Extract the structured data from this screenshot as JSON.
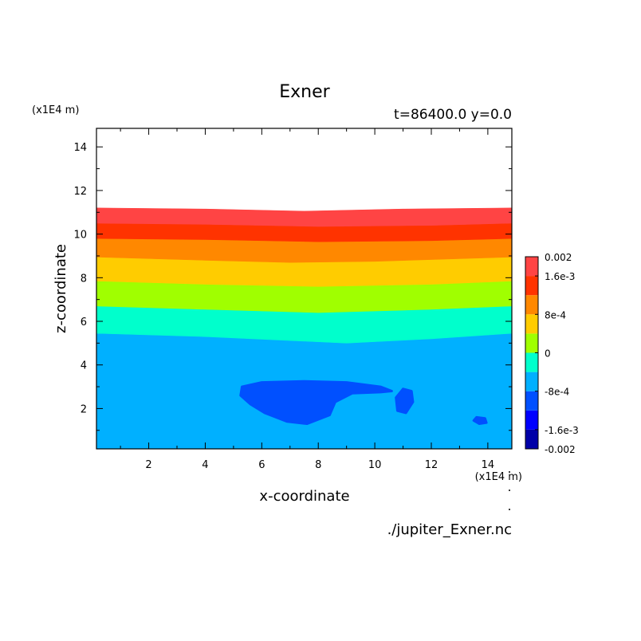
{
  "chart_data": {
    "type": "heatmap",
    "title": "Exner",
    "subtitle": "t=86400.0 y=0.0",
    "xlabel": "x-coordinate",
    "ylabel": "z-coordinate",
    "x_unit": "(x1E4 m)",
    "y_unit": "(x1E4 m)",
    "footer": "./jupiter_Exner.nc",
    "xlim": [
      0.15,
      14.85
    ],
    "ylim": [
      0.15,
      14.85
    ],
    "xticks": [
      2,
      4,
      6,
      8,
      10,
      12,
      14
    ],
    "yticks": [
      2,
      4,
      6,
      8,
      10,
      12,
      14
    ],
    "grid": false,
    "colorbar": {
      "placement": "right",
      "levels": [
        -0.002,
        -0.0016,
        -0.0012,
        -0.0008,
        -0.0004,
        0,
        0.0004,
        0.0008,
        0.0012,
        0.0016,
        0.002
      ],
      "colors": [
        "#0000a8",
        "#0000ff",
        "#0050ff",
        "#00b0ff",
        "#00ffcc",
        "#a0ff00",
        "#ffcc00",
        "#ff8800",
        "#ff3300",
        "#ff4444"
      ],
      "tick_values": [
        0.002,
        0.0016,
        0.0008,
        0,
        -0.0008,
        -0.0016,
        -0.002
      ],
      "tick_labels": [
        "0.002",
        "1.6e-3",
        "8e-4",
        "0",
        "-8e-4",
        "-1.6e-3",
        "-0.002"
      ]
    },
    "bands": [
      {
        "level": "-4e-4..0",
        "color": "#00ffcc",
        "top": [
          [
            0.15,
            6.7
          ],
          [
            4,
            6.55
          ],
          [
            8,
            6.4
          ],
          [
            12,
            6.55
          ],
          [
            14.85,
            6.7
          ]
        ],
        "bottom": [
          [
            0.15,
            5.45
          ],
          [
            4,
            5.3
          ],
          [
            9,
            5.0
          ],
          [
            12,
            5.2
          ],
          [
            14.85,
            5.45
          ]
        ]
      },
      {
        "level": "0..4e-4",
        "color": "#a0ff00",
        "top": [
          [
            0.15,
            7.85
          ],
          [
            4,
            7.7
          ],
          [
            8,
            7.6
          ],
          [
            12,
            7.7
          ],
          [
            14.85,
            7.85
          ]
        ],
        "bottom": [
          [
            0.15,
            6.7
          ],
          [
            4,
            6.55
          ],
          [
            8,
            6.4
          ],
          [
            12,
            6.55
          ],
          [
            14.85,
            6.7
          ]
        ]
      },
      {
        "level": "4e-4..8e-4",
        "color": "#ffcc00",
        "top": [
          [
            0.15,
            8.95
          ],
          [
            4,
            8.8
          ],
          [
            7,
            8.7
          ],
          [
            10,
            8.75
          ],
          [
            14.85,
            8.95
          ]
        ],
        "bottom": [
          [
            0.15,
            7.85
          ],
          [
            4,
            7.7
          ],
          [
            8,
            7.6
          ],
          [
            12,
            7.7
          ],
          [
            14.85,
            7.85
          ]
        ]
      },
      {
        "level": "8e-4..1.2e-3",
        "color": "#ff8800",
        "top": [
          [
            0.15,
            9.8
          ],
          [
            4,
            9.75
          ],
          [
            8,
            9.65
          ],
          [
            12,
            9.7
          ],
          [
            14.85,
            9.8
          ]
        ],
        "bottom": [
          [
            0.15,
            8.95
          ],
          [
            4,
            8.8
          ],
          [
            7,
            8.7
          ],
          [
            10,
            8.75
          ],
          [
            14.85,
            8.95
          ]
        ]
      },
      {
        "level": "1.2e-3..1.6e-3",
        "color": "#ff3300",
        "top": [
          [
            0.15,
            10.5
          ],
          [
            4,
            10.45
          ],
          [
            8,
            10.35
          ],
          [
            12,
            10.4
          ],
          [
            14.85,
            10.5
          ]
        ],
        "bottom": [
          [
            0.15,
            9.8
          ],
          [
            4,
            9.75
          ],
          [
            8,
            9.65
          ],
          [
            12,
            9.7
          ],
          [
            14.85,
            9.8
          ]
        ]
      },
      {
        "level": "1.6e-3..2e-3",
        "color": "#ff4444",
        "top": [
          [
            0.15,
            11.2
          ],
          [
            4,
            11.15
          ],
          [
            7.5,
            11.05
          ],
          [
            11,
            11.15
          ],
          [
            14.85,
            11.2
          ]
        ],
        "bottom": [
          [
            0.15,
            10.5
          ],
          [
            4,
            10.45
          ],
          [
            8,
            10.35
          ],
          [
            12,
            10.4
          ],
          [
            14.85,
            10.5
          ]
        ]
      }
    ],
    "base_band": {
      "level": "-8e-4..-4e-4",
      "color": "#00b0ff",
      "top_y": 5.45
    },
    "patches": [
      {
        "level": "-1.2e-3..-8e-4",
        "color": "#0050ff",
        "points": [
          [
            5.3,
            3.0
          ],
          [
            6.0,
            3.2
          ],
          [
            7.5,
            3.25
          ],
          [
            9.0,
            3.2
          ],
          [
            10.2,
            3.0
          ],
          [
            10.6,
            2.8
          ],
          [
            10.2,
            2.75
          ],
          [
            9.2,
            2.7
          ],
          [
            8.6,
            2.3
          ],
          [
            8.4,
            1.7
          ],
          [
            7.6,
            1.3
          ],
          [
            6.9,
            1.4
          ],
          [
            6.1,
            1.8
          ],
          [
            5.6,
            2.2
          ],
          [
            5.25,
            2.6
          ]
        ]
      },
      {
        "level": "-1.2e-3..-8e-4",
        "color": "#0050ff",
        "points": [
          [
            11.0,
            2.9
          ],
          [
            11.3,
            2.8
          ],
          [
            11.35,
            2.3
          ],
          [
            11.1,
            1.8
          ],
          [
            10.8,
            1.9
          ],
          [
            10.75,
            2.5
          ]
        ]
      },
      {
        "level": "-1.2e-3..-8e-4",
        "color": "#0050ff",
        "points": [
          [
            13.6,
            1.6
          ],
          [
            13.9,
            1.55
          ],
          [
            13.95,
            1.35
          ],
          [
            13.7,
            1.3
          ],
          [
            13.5,
            1.45
          ]
        ]
      }
    ]
  }
}
